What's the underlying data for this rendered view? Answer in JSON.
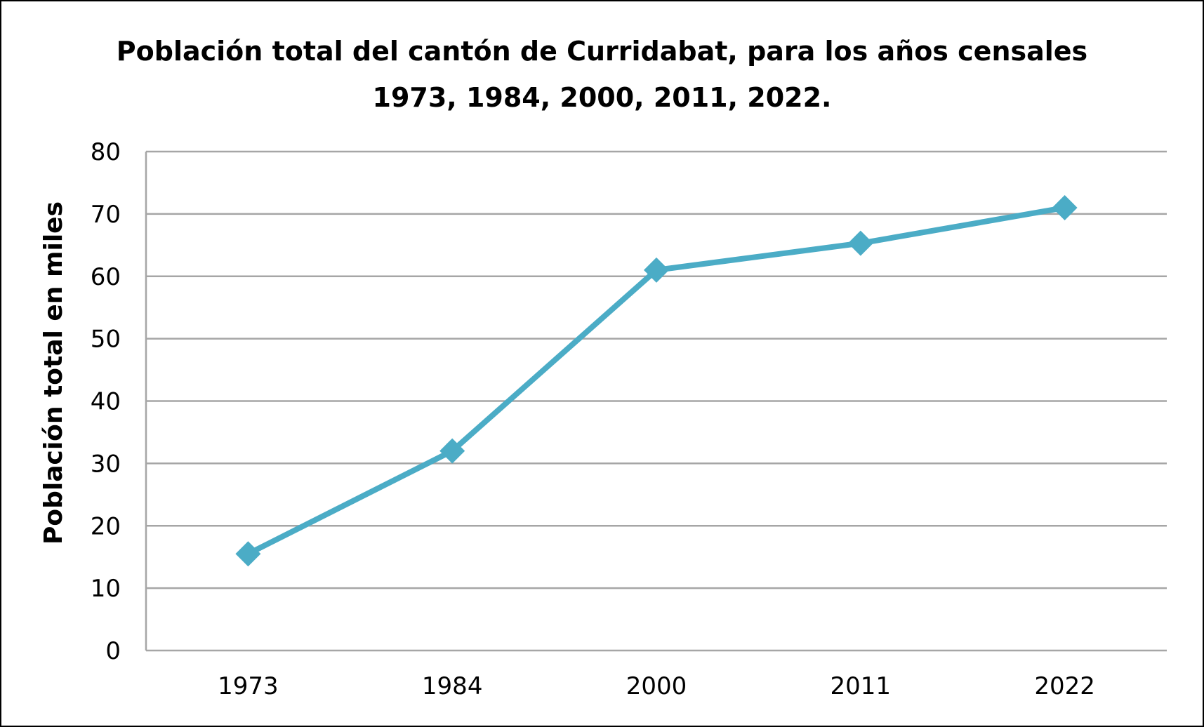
{
  "chart_data": {
    "type": "line",
    "title_lines": [
      "Población total del cantón de Curridabat, para los años censales",
      "1973, 1984, 2000, 2011, 2022."
    ],
    "xlabel": "",
    "ylabel": "Población total en miles",
    "categories": [
      "1973",
      "1984",
      "2000",
      "2011",
      "2022"
    ],
    "series": [
      {
        "values": [
          15.5,
          32,
          61,
          65.3,
          71
        ],
        "color": "#4bacc6",
        "marker": "diamond"
      }
    ],
    "ylim": [
      0,
      80
    ],
    "yticks": [
      0,
      10,
      20,
      30,
      40,
      50,
      60,
      70,
      80
    ],
    "grid": true,
    "legend": "none"
  }
}
